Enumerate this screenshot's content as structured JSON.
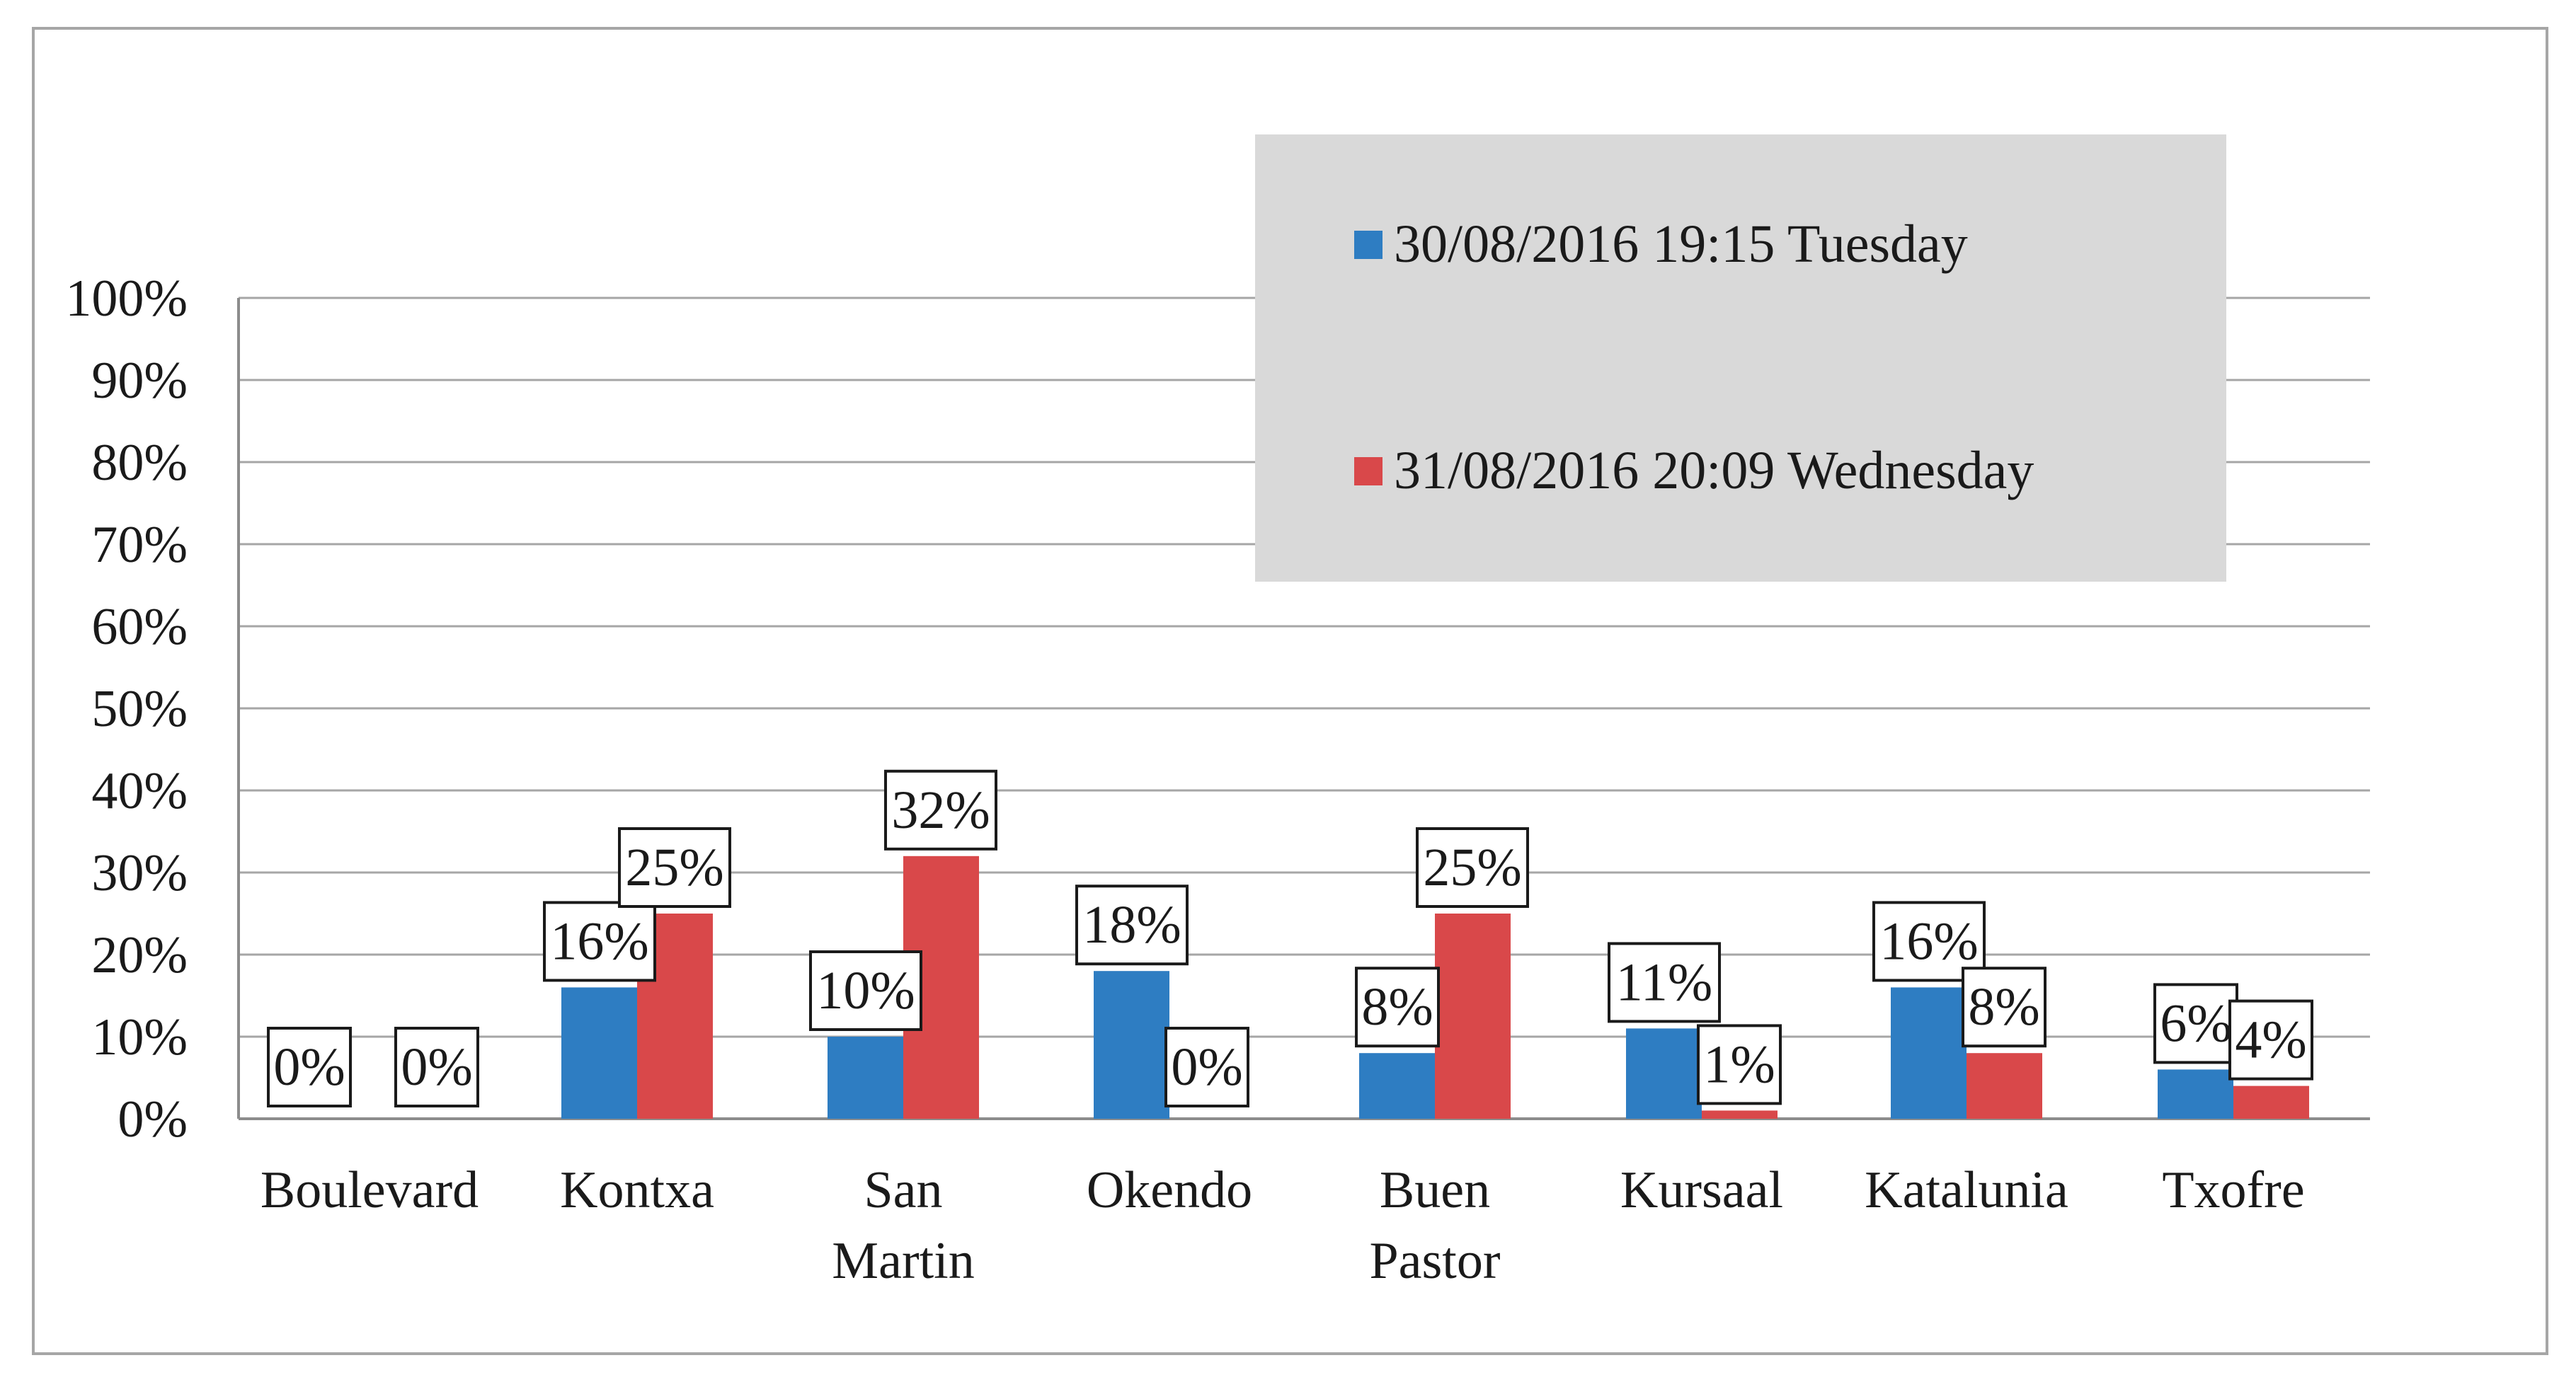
{
  "chart_data": {
    "type": "bar",
    "title": "",
    "xlabel": "",
    "ylabel": "",
    "ylim": [
      0,
      100
    ],
    "yticks": [
      "0%",
      "10%",
      "20%",
      "30%",
      "40%",
      "50%",
      "60%",
      "70%",
      "80%",
      "90%",
      "100%"
    ],
    "grid": true,
    "legend_position": "top-right",
    "categories": [
      [
        "Boulevard"
      ],
      [
        "Kontxa"
      ],
      [
        "San",
        "Martin"
      ],
      [
        "Okendo"
      ],
      [
        "Buen",
        "Pastor"
      ],
      [
        "Kursaal"
      ],
      [
        "Katalunia"
      ],
      [
        "Txofre"
      ]
    ],
    "series": [
      {
        "name": "30/08/2016 19:15 Tuesday",
        "color": "#2e7dc2",
        "values": [
          0,
          16,
          10,
          18,
          8,
          11,
          16,
          6
        ],
        "labels": [
          "0%",
          "16%",
          "10%",
          "18%",
          "8%",
          "11%",
          "16%",
          "6%"
        ]
      },
      {
        "name": "31/08/2016 20:09 Wednesday",
        "color": "#d9484a",
        "values": [
          0,
          25,
          32,
          0,
          25,
          1,
          8,
          4
        ],
        "labels": [
          "0%",
          "25%",
          "32%",
          "0%",
          "25%",
          "1%",
          "8%",
          "4%"
        ]
      }
    ]
  }
}
